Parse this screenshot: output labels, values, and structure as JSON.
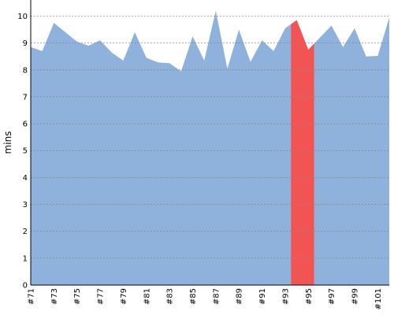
{
  "chart_data": {
    "type": "area",
    "ylabel": "mins",
    "xlabel": "",
    "title": "",
    "ylim": [
      0,
      10.6
    ],
    "grid": true,
    "legend": "none",
    "y_ticks": [
      "0",
      "1",
      "2",
      "3",
      "4",
      "5",
      "6",
      "7",
      "8",
      "9",
      "10"
    ],
    "x": [
      "#71",
      "#72",
      "#73",
      "#74",
      "#75",
      "#76",
      "#77",
      "#78",
      "#79",
      "#80",
      "#81",
      "#82",
      "#83",
      "#84",
      "#85",
      "#86",
      "#87",
      "#88",
      "#89",
      "#90",
      "#91",
      "#92",
      "#93",
      "#94",
      "#95",
      "#96",
      "#97",
      "#98",
      "#99",
      "#100",
      "#101",
      "#102"
    ],
    "x_tick_labels": [
      "#71",
      "#73",
      "#75",
      "#77",
      "#79",
      "#81",
      "#83",
      "#85",
      "#87",
      "#89",
      "#91",
      "#93",
      "#95",
      "#97",
      "#99",
      "#101"
    ],
    "series": [
      {
        "values": [
          8.85,
          8.7,
          9.75,
          9.4,
          9.05,
          8.9,
          9.1,
          8.65,
          8.35,
          9.4,
          8.45,
          8.28,
          8.25,
          7.95,
          9.25,
          8.35,
          10.2,
          8.05,
          9.5,
          8.3,
          9.1,
          8.7,
          9.55,
          9.85,
          8.75,
          9.2,
          9.65,
          8.85,
          9.55,
          8.5,
          8.52,
          9.95
        ],
        "color": "#8fb2dc"
      }
    ],
    "highlight": {
      "from": "#94",
      "to": "#95",
      "color": "#f25454"
    }
  }
}
